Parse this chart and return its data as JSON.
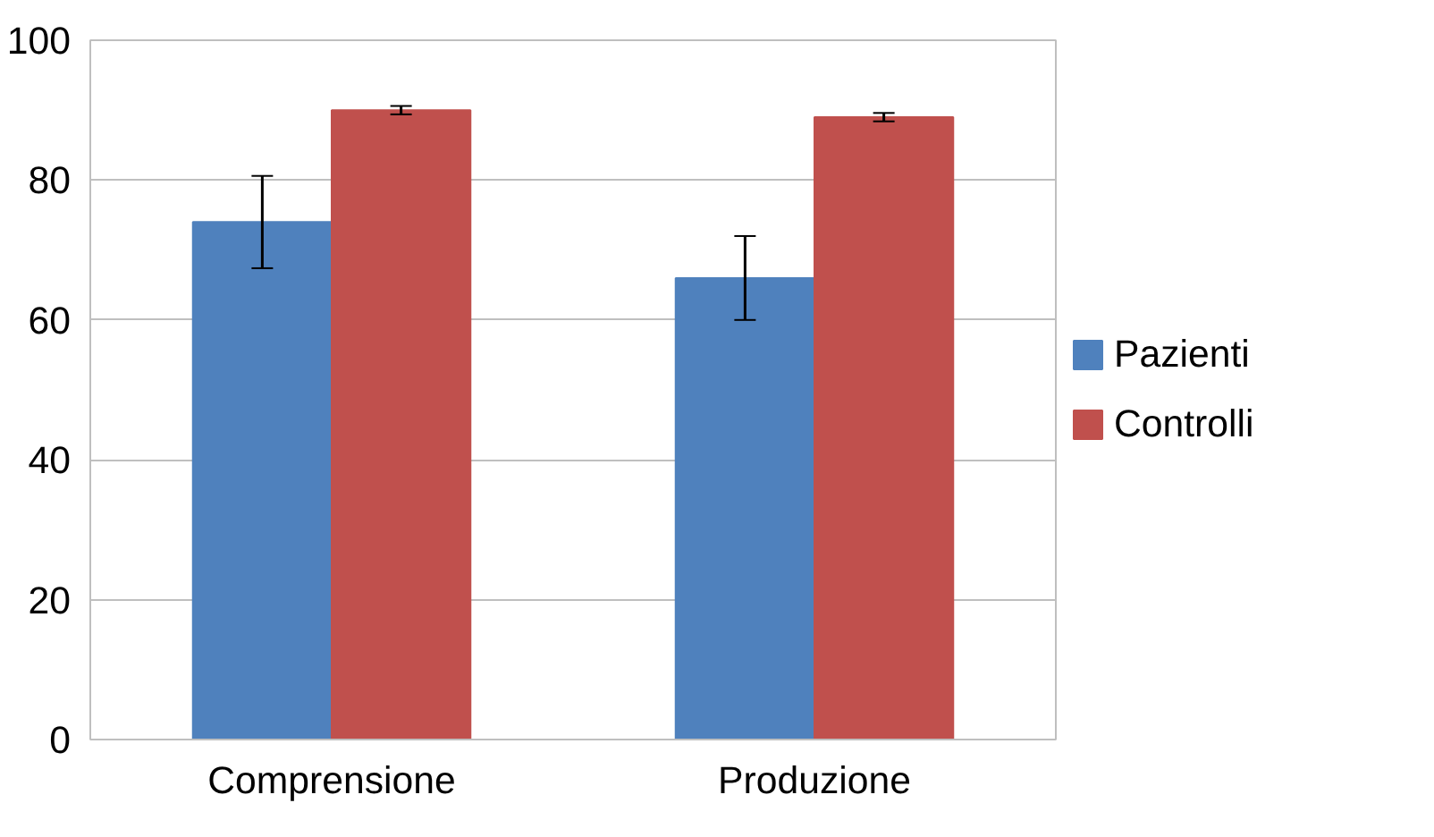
{
  "chart_data": {
    "type": "bar",
    "categories": [
      "Comprensione",
      "Produzione"
    ],
    "series": [
      {
        "name": "Pazienti",
        "color": "#4f81bd",
        "values": [
          74,
          66
        ],
        "errors": [
          6.6,
          6
        ]
      },
      {
        "name": "Controlli",
        "color": "#c0504d",
        "values": [
          90,
          89
        ],
        "errors": [
          0.6,
          0.6
        ]
      }
    ],
    "ylim": [
      0,
      100
    ],
    "yticks": [
      0,
      20,
      40,
      60,
      80,
      100
    ],
    "grid": "y",
    "legend": "right"
  }
}
